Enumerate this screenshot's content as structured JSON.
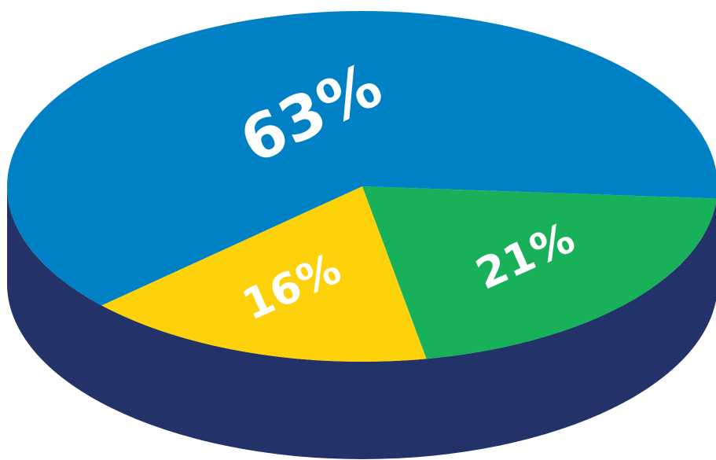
{
  "chart_data": {
    "type": "pie",
    "style": "3d",
    "categories": [
      "",
      "",
      ""
    ],
    "values": [
      63,
      16,
      21
    ],
    "labels": [
      "63%",
      "16%",
      "21%"
    ],
    "colors": [
      "#0181c5",
      "#fdd20a",
      "#18b15a"
    ],
    "side_color": "#233268",
    "title": ""
  }
}
